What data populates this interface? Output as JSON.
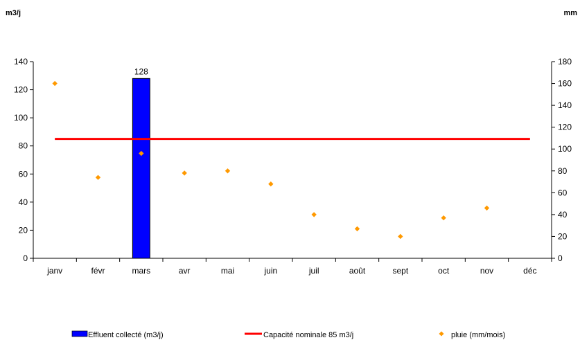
{
  "chart_data": {
    "type": "bar",
    "y_left_label": "m3/j",
    "y_right_label": "mm",
    "y_left_range": [
      0,
      140
    ],
    "y_left_ticks": [
      0,
      20,
      40,
      60,
      80,
      100,
      120,
      140
    ],
    "y_right_range": [
      0,
      180
    ],
    "y_right_ticks": [
      0,
      20,
      40,
      60,
      80,
      100,
      120,
      140,
      160,
      180
    ],
    "categories": [
      "janv",
      "févr",
      "mars",
      "avr",
      "mai",
      "juin",
      "juil",
      "août",
      "sept",
      "oct",
      "nov",
      "déc"
    ],
    "series": [
      {
        "name": "Effluent collecté (m3/j)",
        "kind": "bar",
        "axis": "left",
        "color": "#0000ff",
        "values": [
          null,
          null,
          128,
          null,
          null,
          null,
          null,
          null,
          null,
          null,
          null,
          null
        ],
        "data_labels": [
          null,
          null,
          "128",
          null,
          null,
          null,
          null,
          null,
          null,
          null,
          null,
          null
        ]
      },
      {
        "name": "Capacité nominale 85 m3/j",
        "kind": "line",
        "axis": "left",
        "color": "#ff0000",
        "values": [
          85,
          85,
          85,
          85,
          85,
          85,
          85,
          85,
          85,
          85,
          85,
          85
        ]
      },
      {
        "name": "pluie (mm/mois)",
        "kind": "scatter",
        "axis": "right",
        "color": "#ff9900",
        "values": [
          160,
          74,
          96,
          78,
          80,
          68,
          40,
          27,
          20,
          37,
          46,
          null
        ]
      }
    ],
    "grid": false,
    "legend": "bottom"
  }
}
